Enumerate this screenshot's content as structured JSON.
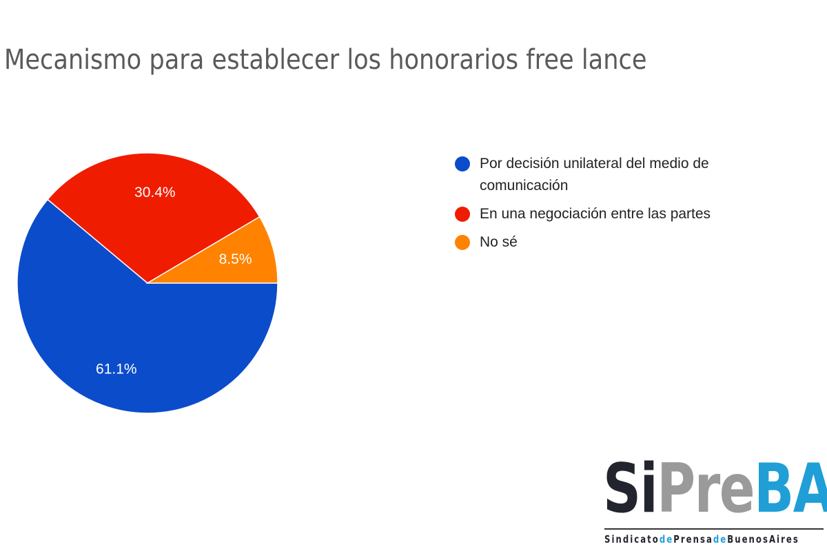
{
  "title": "Mecanismo para establecer los honorarios free lance",
  "chart_data": {
    "type": "pie",
    "title": "Mecanismo para establecer los honorarios free lance",
    "categories": [
      "Por decisión unilateral del medio de comunicación",
      "En una negociación entre las partes",
      "No sé"
    ],
    "values": [
      61.1,
      30.4,
      8.5
    ],
    "labels": [
      "61.1%",
      "30.4%",
      "8.5%"
    ],
    "colors": [
      "#0b4ccb",
      "#f01c00",
      "#ff8200"
    ],
    "start_angle": "3 o'clock, clockwise",
    "legend_position": "right"
  },
  "legend": {
    "items": [
      {
        "label": "Por decisión unilateral del medio de comunicación",
        "line1": "Por decisión unilateral del medio de",
        "line2": "comunicación",
        "color": "#0b4ccb"
      },
      {
        "label": "En una negociación entre las partes",
        "color": "#f01c00"
      },
      {
        "label": "No sé",
        "color": "#ff8200"
      }
    ]
  },
  "logo": {
    "part1": "Si",
    "part2": "Pre",
    "part3": "BA",
    "colors": {
      "part1": "#23252e",
      "part2": "#9a9a9a",
      "part3": "#1f9fd6"
    },
    "subtitle": [
      {
        "text": "Sindicato",
        "color": "#23252e"
      },
      {
        "text": "de",
        "color": "#1f9fd6"
      },
      {
        "text": "Prensa",
        "color": "#23252e"
      },
      {
        "text": "de",
        "color": "#1f9fd6"
      },
      {
        "text": "BuenosAires",
        "color": "#23252e"
      }
    ]
  }
}
